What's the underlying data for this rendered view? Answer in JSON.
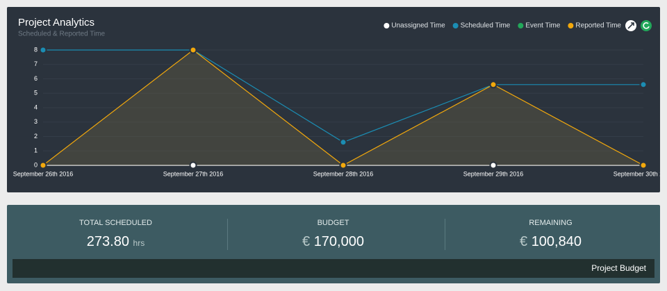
{
  "chart_data": {
    "type": "line",
    "title": "Project Analytics",
    "subtitle": "Scheduled & Reported Time",
    "categories": [
      "September 26th 2016",
      "September 27th 2016",
      "September 28th 2016",
      "September 29th 2016",
      "September 30th 2016"
    ],
    "series": [
      {
        "name": "Unassigned Time",
        "color": "#ffffff",
        "values": [
          0,
          0,
          0,
          0,
          0
        ]
      },
      {
        "name": "Scheduled Time",
        "color": "#1b8db3",
        "values": [
          8,
          8,
          1.6,
          5.6,
          5.6
        ]
      },
      {
        "name": "Event Time",
        "color": "#22a85a",
        "values": [
          null,
          null,
          null,
          null,
          null
        ]
      },
      {
        "name": "Reported Time",
        "color": "#f2a80c",
        "values": [
          0,
          8,
          0,
          5.6,
          0
        ],
        "area": true
      }
    ],
    "ylim": [
      0,
      8
    ],
    "yticks": [
      0,
      1,
      2,
      3,
      4,
      5,
      6,
      7,
      8
    ],
    "grid": true,
    "legend": "top-right"
  },
  "stats": [
    {
      "label": "TOTAL SCHEDULED",
      "value": "273.80",
      "unit": "hrs"
    },
    {
      "label": "BUDGET",
      "prefix": "€",
      "value": "170,000"
    },
    {
      "label": "REMAINING",
      "prefix": "€",
      "value": "100,840"
    }
  ],
  "footer": "Project Budget"
}
